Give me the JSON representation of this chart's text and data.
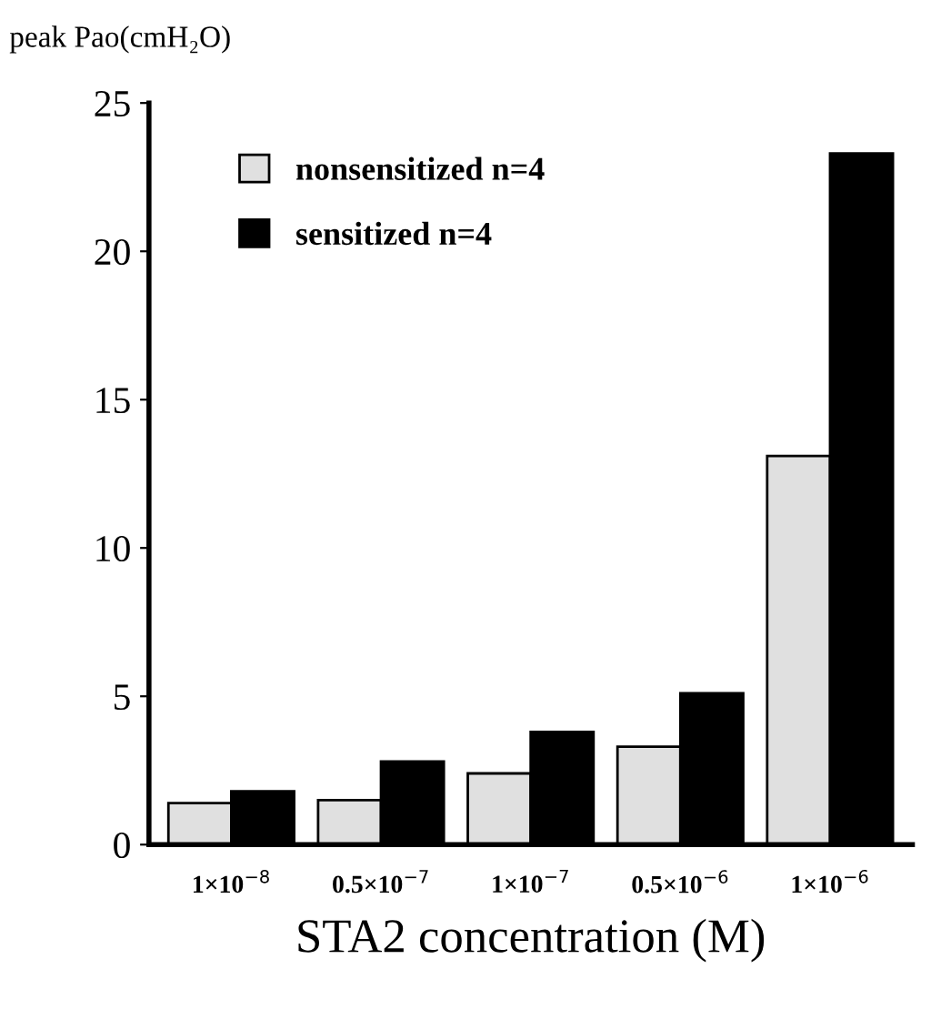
{
  "chart_data": {
    "type": "bar",
    "ylabel": "peak Pao(cmH₂O)",
    "xlabel": "STA2 concentration (M)",
    "categories": [
      "1×10$^{−8}$",
      "0.5×10$^{−7}$",
      "1×10$^{−7}$",
      "0.5×10$^{−6}$",
      "1×10$^{−6}$"
    ],
    "series": [
      {
        "name": "nonsensitized n=4",
        "color": "#e0e0e0",
        "values": [
          1.4,
          1.5,
          2.4,
          3.3,
          13.1
        ]
      },
      {
        "name": "sensitized n=4",
        "color": "#000000",
        "values": [
          1.8,
          2.8,
          3.8,
          5.1,
          23.3
        ]
      }
    ],
    "ylim": [
      0,
      25
    ],
    "yticks": [
      0,
      5,
      10,
      15,
      20,
      25
    ],
    "legend": "top left",
    "grid": false
  }
}
